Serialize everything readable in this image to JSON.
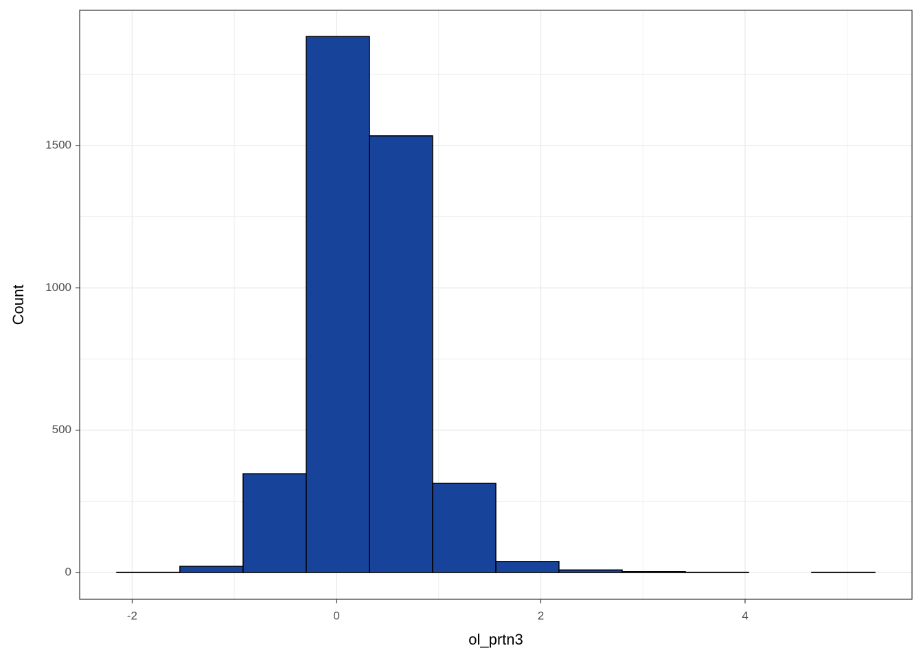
{
  "chart_data": {
    "type": "histogram",
    "x_label": "ol_prtn3",
    "y_label": "Count",
    "bins": [
      -2.151,
      -1.533,
      -0.914,
      -0.296,
      0.323,
      0.941,
      1.56,
      2.178,
      2.797,
      3.415,
      4.034,
      4.652,
      5.271
    ],
    "values": [
      1,
      22,
      347,
      1883,
      1534,
      313,
      39,
      9,
      3,
      1,
      0,
      1
    ],
    "color": "#18439a",
    "edge_color": "#000000",
    "xlim": [
      -2.514,
      5.634
    ],
    "ylim": [
      -94,
      1975
    ],
    "xticks": [
      -2,
      0,
      2,
      4
    ],
    "yticks": [
      0,
      500,
      1000,
      1500
    ],
    "xminorticks": [
      -1,
      1,
      3,
      5
    ],
    "yminorticks": [
      250,
      750,
      1250,
      1750
    ],
    "grid": true
  }
}
